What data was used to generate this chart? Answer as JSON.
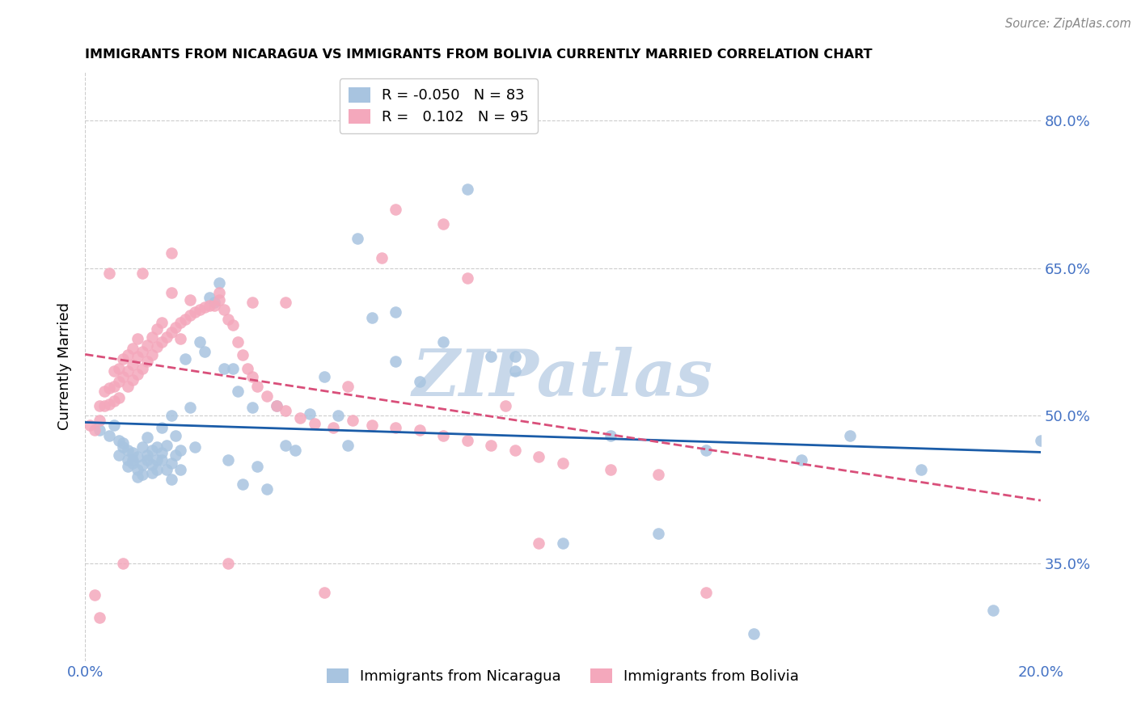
{
  "title": "IMMIGRANTS FROM NICARAGUA VS IMMIGRANTS FROM BOLIVIA CURRENTLY MARRIED CORRELATION CHART",
  "source": "Source: ZipAtlas.com",
  "ylabel": "Currently Married",
  "xlim": [
    0.0,
    0.2
  ],
  "ylim": [
    0.25,
    0.85
  ],
  "yticks": [
    0.35,
    0.5,
    0.65,
    0.8
  ],
  "ytick_labels": [
    "35.0%",
    "50.0%",
    "65.0%",
    "80.0%"
  ],
  "xticks": [
    0.0,
    0.05,
    0.1,
    0.15,
    0.2
  ],
  "xtick_labels": [
    "0.0%",
    "",
    "",
    "",
    "20.0%"
  ],
  "r_nicaragua": -0.05,
  "n_nicaragua": 83,
  "r_bolivia": 0.102,
  "n_bolivia": 95,
  "color_nicaragua": "#a8c4e0",
  "color_bolivia": "#f4a8bc",
  "line_color_nicaragua": "#1a5ca8",
  "line_color_bolivia": "#d94f7a",
  "watermark": "ZIPatlas",
  "watermark_color": "#c8d8ea",
  "nicaragua_x": [
    0.003,
    0.005,
    0.006,
    0.007,
    0.007,
    0.008,
    0.008,
    0.009,
    0.009,
    0.009,
    0.01,
    0.01,
    0.01,
    0.011,
    0.011,
    0.011,
    0.012,
    0.012,
    0.012,
    0.013,
    0.013,
    0.013,
    0.014,
    0.014,
    0.014,
    0.015,
    0.015,
    0.015,
    0.016,
    0.016,
    0.016,
    0.017,
    0.017,
    0.018,
    0.018,
    0.018,
    0.019,
    0.019,
    0.02,
    0.02,
    0.021,
    0.022,
    0.023,
    0.024,
    0.025,
    0.026,
    0.027,
    0.028,
    0.029,
    0.03,
    0.031,
    0.032,
    0.033,
    0.035,
    0.036,
    0.038,
    0.04,
    0.042,
    0.044,
    0.047,
    0.05,
    0.053,
    0.057,
    0.06,
    0.065,
    0.07,
    0.075,
    0.08,
    0.085,
    0.09,
    0.1,
    0.11,
    0.12,
    0.13,
    0.14,
    0.15,
    0.16,
    0.175,
    0.19,
    0.2,
    0.055,
    0.065,
    0.09
  ],
  "nicaragua_y": [
    0.485,
    0.48,
    0.49,
    0.475,
    0.46,
    0.472,
    0.468,
    0.465,
    0.455,
    0.448,
    0.452,
    0.462,
    0.455,
    0.458,
    0.445,
    0.438,
    0.468,
    0.45,
    0.44,
    0.455,
    0.478,
    0.46,
    0.45,
    0.465,
    0.442,
    0.455,
    0.468,
    0.445,
    0.488,
    0.462,
    0.455,
    0.47,
    0.445,
    0.5,
    0.452,
    0.435,
    0.48,
    0.46,
    0.465,
    0.445,
    0.558,
    0.508,
    0.468,
    0.575,
    0.565,
    0.62,
    0.615,
    0.635,
    0.548,
    0.455,
    0.548,
    0.525,
    0.43,
    0.508,
    0.448,
    0.425,
    0.51,
    0.47,
    0.465,
    0.502,
    0.54,
    0.5,
    0.68,
    0.6,
    0.605,
    0.535,
    0.575,
    0.73,
    0.56,
    0.56,
    0.37,
    0.48,
    0.38,
    0.465,
    0.278,
    0.455,
    0.48,
    0.445,
    0.302,
    0.475,
    0.47,
    0.555,
    0.545
  ],
  "bolivia_x": [
    0.001,
    0.002,
    0.003,
    0.003,
    0.004,
    0.004,
    0.005,
    0.005,
    0.006,
    0.006,
    0.006,
    0.007,
    0.007,
    0.007,
    0.008,
    0.008,
    0.009,
    0.009,
    0.009,
    0.01,
    0.01,
    0.01,
    0.011,
    0.011,
    0.011,
    0.012,
    0.012,
    0.013,
    0.013,
    0.014,
    0.014,
    0.015,
    0.015,
    0.016,
    0.016,
    0.017,
    0.018,
    0.019,
    0.02,
    0.02,
    0.021,
    0.022,
    0.023,
    0.024,
    0.025,
    0.026,
    0.027,
    0.028,
    0.029,
    0.03,
    0.031,
    0.032,
    0.033,
    0.034,
    0.035,
    0.036,
    0.038,
    0.04,
    0.042,
    0.045,
    0.048,
    0.052,
    0.056,
    0.06,
    0.065,
    0.07,
    0.075,
    0.08,
    0.085,
    0.09,
    0.095,
    0.1,
    0.11,
    0.12,
    0.002,
    0.003,
    0.008,
    0.03,
    0.05,
    0.065,
    0.08,
    0.13,
    0.018,
    0.028,
    0.005,
    0.012,
    0.018,
    0.035,
    0.022,
    0.042,
    0.055,
    0.062,
    0.075,
    0.088,
    0.095
  ],
  "bolivia_y": [
    0.49,
    0.485,
    0.51,
    0.495,
    0.525,
    0.51,
    0.528,
    0.512,
    0.545,
    0.53,
    0.515,
    0.548,
    0.535,
    0.518,
    0.558,
    0.54,
    0.562,
    0.545,
    0.53,
    0.568,
    0.552,
    0.536,
    0.578,
    0.56,
    0.542,
    0.565,
    0.548,
    0.572,
    0.555,
    0.58,
    0.562,
    0.588,
    0.57,
    0.595,
    0.575,
    0.58,
    0.585,
    0.59,
    0.595,
    0.578,
    0.598,
    0.602,
    0.605,
    0.608,
    0.61,
    0.612,
    0.612,
    0.618,
    0.608,
    0.598,
    0.592,
    0.575,
    0.562,
    0.548,
    0.54,
    0.53,
    0.52,
    0.51,
    0.505,
    0.498,
    0.492,
    0.488,
    0.495,
    0.49,
    0.488,
    0.485,
    0.48,
    0.475,
    0.47,
    0.465,
    0.458,
    0.452,
    0.445,
    0.44,
    0.318,
    0.295,
    0.35,
    0.35,
    0.32,
    0.71,
    0.64,
    0.32,
    0.665,
    0.625,
    0.645,
    0.645,
    0.625,
    0.615,
    0.618,
    0.615,
    0.53,
    0.66,
    0.695,
    0.51,
    0.37
  ]
}
